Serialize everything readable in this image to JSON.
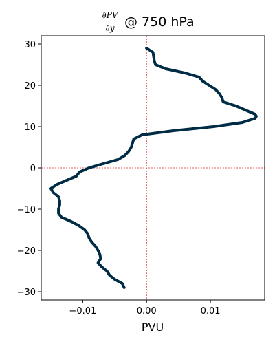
{
  "chart_data": {
    "type": "line",
    "title": {
      "numerator": "∂PV",
      "denominator": "∂y",
      "suffix": "@ 750 hPa"
    },
    "xlabel": "PVU",
    "ylabel": "",
    "xlim": [
      -0.0165,
      0.0185
    ],
    "ylim": [
      -32,
      32
    ],
    "xticks": [
      -0.01,
      0.0,
      0.01
    ],
    "xtick_labels": [
      "−0.01",
      "0.00",
      "0.01"
    ],
    "yticks": [
      -30,
      -20,
      -10,
      0,
      10,
      20,
      30
    ],
    "ytick_labels": [
      "−30",
      "−20",
      "−10",
      "0",
      "10",
      "20",
      "30"
    ],
    "reference_lines": {
      "x": 0,
      "y": 0,
      "color": "#d62728",
      "style": "dotted"
    },
    "grid": false,
    "series": [
      {
        "color": "#002b45",
        "points": [
          {
            "x": 0.0,
            "y": 29
          },
          {
            "x": 0.001,
            "y": 28
          },
          {
            "x": 0.0012,
            "y": 26
          },
          {
            "x": 0.0014,
            "y": 25
          },
          {
            "x": 0.003,
            "y": 24
          },
          {
            "x": 0.006,
            "y": 23
          },
          {
            "x": 0.0082,
            "y": 22
          },
          {
            "x": 0.0088,
            "y": 21
          },
          {
            "x": 0.0098,
            "y": 20
          },
          {
            "x": 0.0108,
            "y": 19
          },
          {
            "x": 0.0114,
            "y": 18
          },
          {
            "x": 0.0118,
            "y": 17
          },
          {
            "x": 0.012,
            "y": 16
          },
          {
            "x": 0.014,
            "y": 15
          },
          {
            "x": 0.0155,
            "y": 14
          },
          {
            "x": 0.017,
            "y": 13
          },
          {
            "x": 0.0172,
            "y": 12.5
          },
          {
            "x": 0.017,
            "y": 12
          },
          {
            "x": 0.015,
            "y": 11
          },
          {
            "x": 0.0105,
            "y": 10
          },
          {
            "x": 0.0042,
            "y": 9
          },
          {
            "x": -0.0007,
            "y": 8
          },
          {
            "x": -0.002,
            "y": 7
          },
          {
            "x": -0.0022,
            "y": 6
          },
          {
            "x": -0.0024,
            "y": 5
          },
          {
            "x": -0.0028,
            "y": 4
          },
          {
            "x": -0.0034,
            "y": 3
          },
          {
            "x": -0.0045,
            "y": 2
          },
          {
            "x": -0.0068,
            "y": 1
          },
          {
            "x": -0.009,
            "y": 0
          },
          {
            "x": -0.0105,
            "y": -1
          },
          {
            "x": -0.011,
            "y": -2
          },
          {
            "x": -0.0125,
            "y": -3
          },
          {
            "x": -0.014,
            "y": -4
          },
          {
            "x": -0.015,
            "y": -5
          },
          {
            "x": -0.0146,
            "y": -6
          },
          {
            "x": -0.0138,
            "y": -7
          },
          {
            "x": -0.0136,
            "y": -8
          },
          {
            "x": -0.0136,
            "y": -9
          },
          {
            "x": -0.0138,
            "y": -10
          },
          {
            "x": -0.0138,
            "y": -11
          },
          {
            "x": -0.0133,
            "y": -12
          },
          {
            "x": -0.0118,
            "y": -13
          },
          {
            "x": -0.0106,
            "y": -14
          },
          {
            "x": -0.0097,
            "y": -15
          },
          {
            "x": -0.0092,
            "y": -16
          },
          {
            "x": -0.009,
            "y": -17
          },
          {
            "x": -0.0086,
            "y": -18
          },
          {
            "x": -0.008,
            "y": -19
          },
          {
            "x": -0.0076,
            "y": -20
          },
          {
            "x": -0.0073,
            "y": -21
          },
          {
            "x": -0.0072,
            "y": -22
          },
          {
            "x": -0.0076,
            "y": -23
          },
          {
            "x": -0.007,
            "y": -24
          },
          {
            "x": -0.0062,
            "y": -25
          },
          {
            "x": -0.0058,
            "y": -26
          },
          {
            "x": -0.005,
            "y": -27
          },
          {
            "x": -0.0038,
            "y": -28
          },
          {
            "x": -0.0035,
            "y": -29
          }
        ]
      }
    ]
  }
}
